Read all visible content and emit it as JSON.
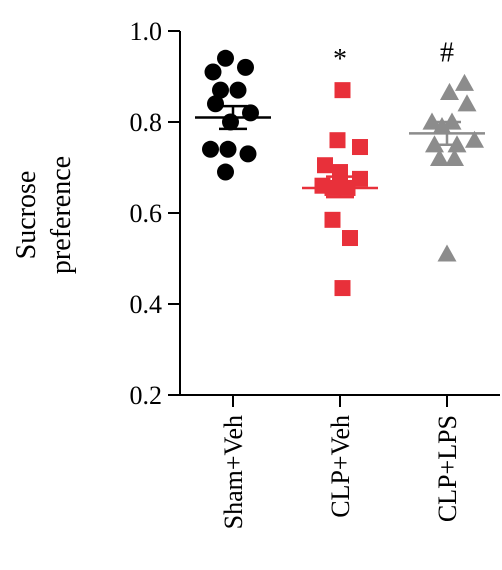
{
  "chart_data": {
    "type": "scatter",
    "ylabel_lines": [
      "Sucrose",
      "preference"
    ],
    "ylim": [
      0.2,
      1.0
    ],
    "yticks": [
      {
        "value": 0.2,
        "label": "0.2"
      },
      {
        "value": 0.4,
        "label": "0.4"
      },
      {
        "value": 0.6,
        "label": "0.6"
      },
      {
        "value": 0.8,
        "label": "0.8"
      },
      {
        "value": 1.0,
        "label": "1.0"
      }
    ],
    "categories": [
      "Sham+Veh",
      "CLP+Veh",
      "CLP+LPS"
    ],
    "grid": false,
    "groups": [
      {
        "category": "Sham+Veh",
        "marker": "circle",
        "color": "#000000",
        "mean": 0.81,
        "sem_low": 0.785,
        "sem_high": 0.835,
        "significance": "",
        "points": [
          {
            "offset": -0.4,
            "value": 0.91
          },
          {
            "offset": -0.15,
            "value": 0.94
          },
          {
            "offset": 0.25,
            "value": 0.92
          },
          {
            "offset": -0.25,
            "value": 0.87
          },
          {
            "offset": 0.1,
            "value": 0.87
          },
          {
            "offset": -0.35,
            "value": 0.84
          },
          {
            "offset": 0.35,
            "value": 0.82
          },
          {
            "offset": -0.05,
            "value": 0.8
          },
          {
            "offset": -0.45,
            "value": 0.74
          },
          {
            "offset": -0.1,
            "value": 0.74
          },
          {
            "offset": 0.3,
            "value": 0.73
          },
          {
            "offset": -0.15,
            "value": 0.69
          }
        ]
      },
      {
        "category": "CLP+Veh",
        "marker": "square",
        "color": "#e8303a",
        "mean": 0.655,
        "sem_low": 0.635,
        "sem_high": 0.68,
        "significance": "*",
        "points": [
          {
            "offset": 0.05,
            "value": 0.87
          },
          {
            "offset": -0.05,
            "value": 0.76
          },
          {
            "offset": 0.4,
            "value": 0.745
          },
          {
            "offset": -0.3,
            "value": 0.705
          },
          {
            "offset": 0.0,
            "value": 0.69
          },
          {
            "offset": 0.4,
            "value": 0.675
          },
          {
            "offset": -0.35,
            "value": 0.66
          },
          {
            "offset": -0.15,
            "value": 0.655
          },
          {
            "offset": 0.15,
            "value": 0.655
          },
          {
            "offset": -0.15,
            "value": 0.585
          },
          {
            "offset": 0.2,
            "value": 0.545
          },
          {
            "offset": 0.05,
            "value": 0.435
          }
        ]
      },
      {
        "category": "CLP+LPS",
        "marker": "triangle",
        "color": "#8c8c8c",
        "mean": 0.775,
        "sem_low": 0.75,
        "sem_high": 0.8,
        "significance": "#",
        "points": [
          {
            "offset": 0.35,
            "value": 0.885
          },
          {
            "offset": 0.05,
            "value": 0.865
          },
          {
            "offset": 0.4,
            "value": 0.84
          },
          {
            "offset": -0.3,
            "value": 0.8
          },
          {
            "offset": -0.1,
            "value": 0.79
          },
          {
            "offset": 0.1,
            "value": 0.8
          },
          {
            "offset": 0.55,
            "value": 0.76
          },
          {
            "offset": -0.25,
            "value": 0.75
          },
          {
            "offset": 0.2,
            "value": 0.75
          },
          {
            "offset": -0.15,
            "value": 0.72
          },
          {
            "offset": 0.15,
            "value": 0.72
          },
          {
            "offset": 0.0,
            "value": 0.51
          }
        ]
      }
    ]
  }
}
